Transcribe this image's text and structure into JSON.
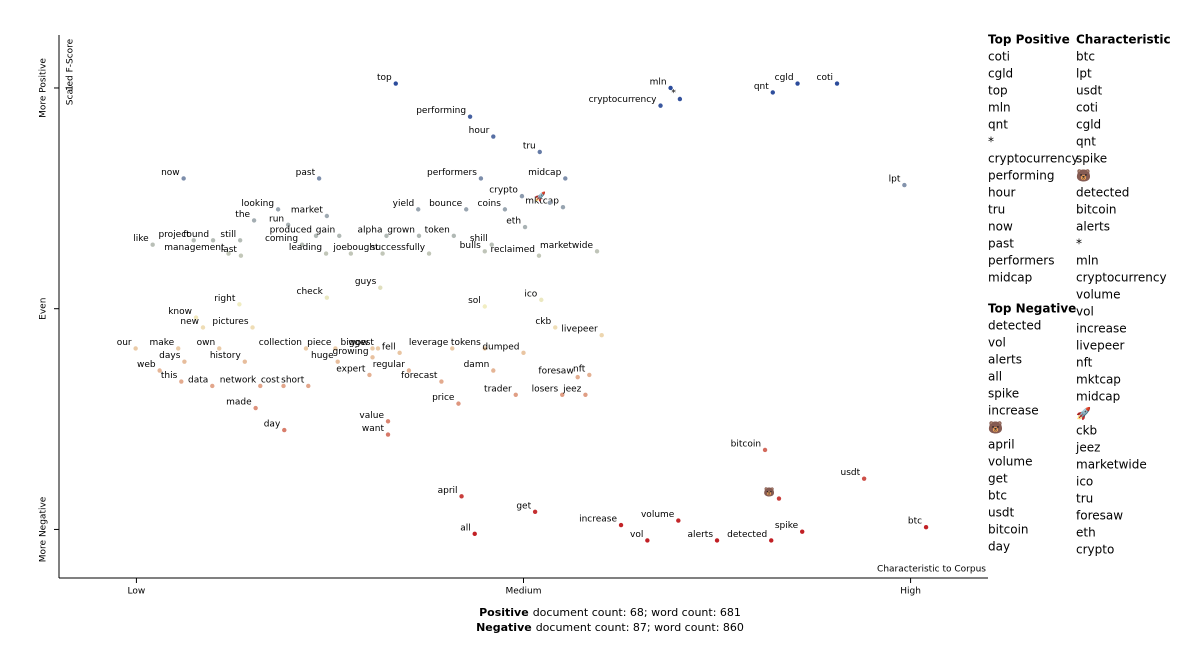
{
  "chart_data": {
    "type": "scatter",
    "y_label": "Scaled F-Score",
    "x_label": "Characteristic to Corpus",
    "xlim": [
      -0.1,
      1.1
    ],
    "ylim": [
      -1.22,
      1.24
    ],
    "xticks": [
      {
        "value": 0,
        "label": "Low"
      },
      {
        "value": 0.5,
        "label": "Medium"
      },
      {
        "value": 1,
        "label": "High"
      }
    ],
    "yticks": [
      {
        "value": 1,
        "label": "More Positive"
      },
      {
        "value": 0,
        "label": "Even"
      },
      {
        "value": -1,
        "label": "More Negative"
      }
    ],
    "inner_yticks": [
      1
    ],
    "colors": {
      "positive": "#2b4b9b",
      "even": "#f3efc2",
      "negative": "#c11f24"
    },
    "points": [
      {
        "label": "top",
        "x": 0.335,
        "y": 1.02
      },
      {
        "label": "mln",
        "x": 0.69,
        "y": 1.0
      },
      {
        "label": "cryptocurrency",
        "x": 0.677,
        "y": 0.92
      },
      {
        "label": "*",
        "x": 0.702,
        "y": 0.95
      },
      {
        "label": "cgld",
        "x": 0.854,
        "y": 1.02
      },
      {
        "label": "qnt",
        "x": 0.822,
        "y": 0.98
      },
      {
        "label": "coti",
        "x": 0.905,
        "y": 1.02
      },
      {
        "label": "performing",
        "x": 0.431,
        "y": 0.87
      },
      {
        "label": "hour",
        "x": 0.461,
        "y": 0.78
      },
      {
        "label": "tru",
        "x": 0.521,
        "y": 0.71
      },
      {
        "label": "now",
        "x": 0.061,
        "y": 0.59
      },
      {
        "label": "past",
        "x": 0.236,
        "y": 0.59
      },
      {
        "label": "performers",
        "x": 0.445,
        "y": 0.59
      },
      {
        "label": "midcap",
        "x": 0.554,
        "y": 0.59
      },
      {
        "label": "crypto",
        "x": 0.498,
        "y": 0.51
      },
      {
        "label": "mktcap",
        "x": 0.551,
        "y": 0.46
      },
      {
        "label": "🚀",
        "x": 0.534,
        "y": 0.48
      },
      {
        "label": "lpt",
        "x": 0.992,
        "y": 0.56
      },
      {
        "label": "looking",
        "x": 0.183,
        "y": 0.45
      },
      {
        "label": "market",
        "x": 0.246,
        "y": 0.42
      },
      {
        "label": "yield",
        "x": 0.364,
        "y": 0.45
      },
      {
        "label": "bounce",
        "x": 0.426,
        "y": 0.45
      },
      {
        "label": "coins",
        "x": 0.476,
        "y": 0.45
      },
      {
        "label": "the",
        "x": 0.152,
        "y": 0.4
      },
      {
        "label": "run",
        "x": 0.196,
        "y": 0.38
      },
      {
        "label": "eth",
        "x": 0.502,
        "y": 0.37
      },
      {
        "label": "shill",
        "x": 0.459,
        "y": 0.29
      },
      {
        "label": "like",
        "x": 0.021,
        "y": 0.29
      },
      {
        "label": "project",
        "x": 0.074,
        "y": 0.31
      },
      {
        "label": "found",
        "x": 0.099,
        "y": 0.31
      },
      {
        "label": "still",
        "x": 0.134,
        "y": 0.31
      },
      {
        "label": "management",
        "x": 0.119,
        "y": 0.25
      },
      {
        "label": "last",
        "x": 0.135,
        "y": 0.24
      },
      {
        "label": "coming",
        "x": 0.214,
        "y": 0.29
      },
      {
        "label": "produced",
        "x": 0.232,
        "y": 0.33
      },
      {
        "label": "gain",
        "x": 0.262,
        "y": 0.33
      },
      {
        "label": "alpha",
        "x": 0.323,
        "y": 0.33
      },
      {
        "label": "grown",
        "x": 0.365,
        "y": 0.33
      },
      {
        "label": "token",
        "x": 0.41,
        "y": 0.33
      },
      {
        "label": "leading",
        "x": 0.245,
        "y": 0.25
      },
      {
        "label": "joe",
        "x": 0.277,
        "y": 0.25
      },
      {
        "label": "bought",
        "x": 0.318,
        "y": 0.25
      },
      {
        "label": "successfully",
        "x": 0.378,
        "y": 0.25
      },
      {
        "label": "bulls",
        "x": 0.45,
        "y": 0.26
      },
      {
        "label": "reclaimed",
        "x": 0.52,
        "y": 0.24
      },
      {
        "label": "marketwide",
        "x": 0.595,
        "y": 0.26
      },
      {
        "label": "guys",
        "x": 0.315,
        "y": 0.095
      },
      {
        "label": "check",
        "x": 0.246,
        "y": 0.05
      },
      {
        "label": "ico",
        "x": 0.523,
        "y": 0.04
      },
      {
        "label": "sol",
        "x": 0.45,
        "y": 0.01
      },
      {
        "label": "right",
        "x": 0.133,
        "y": 0.02
      },
      {
        "label": "know",
        "x": 0.077,
        "y": -0.04
      },
      {
        "label": "pictures",
        "x": 0.15,
        "y": -0.085
      },
      {
        "label": "new",
        "x": 0.086,
        "y": -0.085
      },
      {
        "label": "collection",
        "x": 0.219,
        "y": -0.18
      },
      {
        "label": "piece",
        "x": 0.257,
        "y": -0.18
      },
      {
        "label": "wow",
        "x": 0.305,
        "y": -0.18
      },
      {
        "label": "tokens",
        "x": 0.45,
        "y": -0.18
      },
      {
        "label": "ckb",
        "x": 0.541,
        "y": -0.085
      },
      {
        "label": "livepeer",
        "x": 0.601,
        "y": -0.12
      },
      {
        "label": "our",
        "x": -0.001,
        "y": -0.18
      },
      {
        "label": "make",
        "x": 0.054,
        "y": -0.18
      },
      {
        "label": "own",
        "x": 0.107,
        "y": -0.18
      },
      {
        "label": "biggest",
        "x": 0.312,
        "y": -0.18
      },
      {
        "label": "leverage",
        "x": 0.408,
        "y": -0.18
      },
      {
        "label": "fell",
        "x": 0.34,
        "y": -0.2
      },
      {
        "label": "days",
        "x": 0.062,
        "y": -0.24
      },
      {
        "label": "history",
        "x": 0.14,
        "y": -0.24
      },
      {
        "label": "huge",
        "x": 0.26,
        "y": -0.24
      },
      {
        "label": "growing",
        "x": 0.305,
        "y": -0.22
      },
      {
        "label": "dumped",
        "x": 0.5,
        "y": -0.2
      },
      {
        "label": "web",
        "x": 0.03,
        "y": -0.28
      },
      {
        "label": "this",
        "x": 0.058,
        "y": -0.33
      },
      {
        "label": "data",
        "x": 0.098,
        "y": -0.35
      },
      {
        "label": "network",
        "x": 0.16,
        "y": -0.35
      },
      {
        "label": "cost",
        "x": 0.19,
        "y": -0.35
      },
      {
        "label": "short",
        "x": 0.222,
        "y": -0.35
      },
      {
        "label": "expert",
        "x": 0.301,
        "y": -0.3
      },
      {
        "label": "regular",
        "x": 0.352,
        "y": -0.28
      },
      {
        "label": "damn",
        "x": 0.461,
        "y": -0.28
      },
      {
        "label": "forecast",
        "x": 0.394,
        "y": -0.33
      },
      {
        "label": "foresaw",
        "x": 0.57,
        "y": -0.31
      },
      {
        "label": "nft",
        "x": 0.585,
        "y": -0.3
      },
      {
        "label": "trader",
        "x": 0.49,
        "y": -0.39
      },
      {
        "label": "losers",
        "x": 0.55,
        "y": -0.39
      },
      {
        "label": "jeez",
        "x": 0.58,
        "y": -0.39
      },
      {
        "label": "price",
        "x": 0.416,
        "y": -0.43
      },
      {
        "label": "made",
        "x": 0.154,
        "y": -0.45
      },
      {
        "label": "day",
        "x": 0.191,
        "y": -0.55
      },
      {
        "label": "value",
        "x": 0.325,
        "y": -0.51
      },
      {
        "label": "want",
        "x": 0.325,
        "y": -0.57
      },
      {
        "label": "bitcoin",
        "x": 0.812,
        "y": -0.64
      },
      {
        "label": "usdt",
        "x": 0.94,
        "y": -0.77
      },
      {
        "label": "april",
        "x": 0.42,
        "y": -0.85
      },
      {
        "label": "get",
        "x": 0.515,
        "y": -0.92
      },
      {
        "label": "increase",
        "x": 0.626,
        "y": -0.98
      },
      {
        "label": "volume",
        "x": 0.7,
        "y": -0.96
      },
      {
        "label": "all",
        "x": 0.437,
        "y": -1.02
      },
      {
        "label": "vol",
        "x": 0.66,
        "y": -1.05
      },
      {
        "label": "alerts",
        "x": 0.75,
        "y": -1.05
      },
      {
        "label": "detected",
        "x": 0.82,
        "y": -1.05
      },
      {
        "label": "spike",
        "x": 0.86,
        "y": -1.01
      },
      {
        "label": "🐻",
        "x": 0.83,
        "y": -0.86
      },
      {
        "label": "btc",
        "x": 1.02,
        "y": -0.99
      }
    ],
    "panel": {
      "top_positive": {
        "title": "Top Positive",
        "terms": [
          "coti",
          "cgld",
          "top",
          "mln",
          "qnt",
          "*",
          "cryptocurrency",
          "performing",
          "hour",
          "tru",
          "now",
          "past",
          "performers",
          "midcap"
        ]
      },
      "top_negative": {
        "title": "Top Negative",
        "terms": [
          "detected",
          "vol",
          "alerts",
          "all",
          "spike",
          "increase",
          "🐻",
          "april",
          "volume",
          "get",
          "btc",
          "usdt",
          "bitcoin",
          "day"
        ]
      },
      "characteristic": {
        "title": "Characteristic",
        "terms": [
          "btc",
          "lpt",
          "usdt",
          "coti",
          "cgld",
          "qnt",
          "spike",
          "🐻",
          "detected",
          "bitcoin",
          "alerts",
          "*",
          "mln",
          "cryptocurrency",
          "volume",
          "vol",
          "increase",
          "livepeer",
          "nft",
          "mktcap",
          "midcap",
          "🚀",
          "ckb",
          "jeez",
          "marketwide",
          "ico",
          "tru",
          "foresaw",
          "eth",
          "crypto"
        ]
      }
    },
    "footer": [
      {
        "label": "Positive",
        "text": "document count: 68; word count: 681"
      },
      {
        "label": "Negative",
        "text": "document count: 87; word count: 860"
      }
    ]
  }
}
